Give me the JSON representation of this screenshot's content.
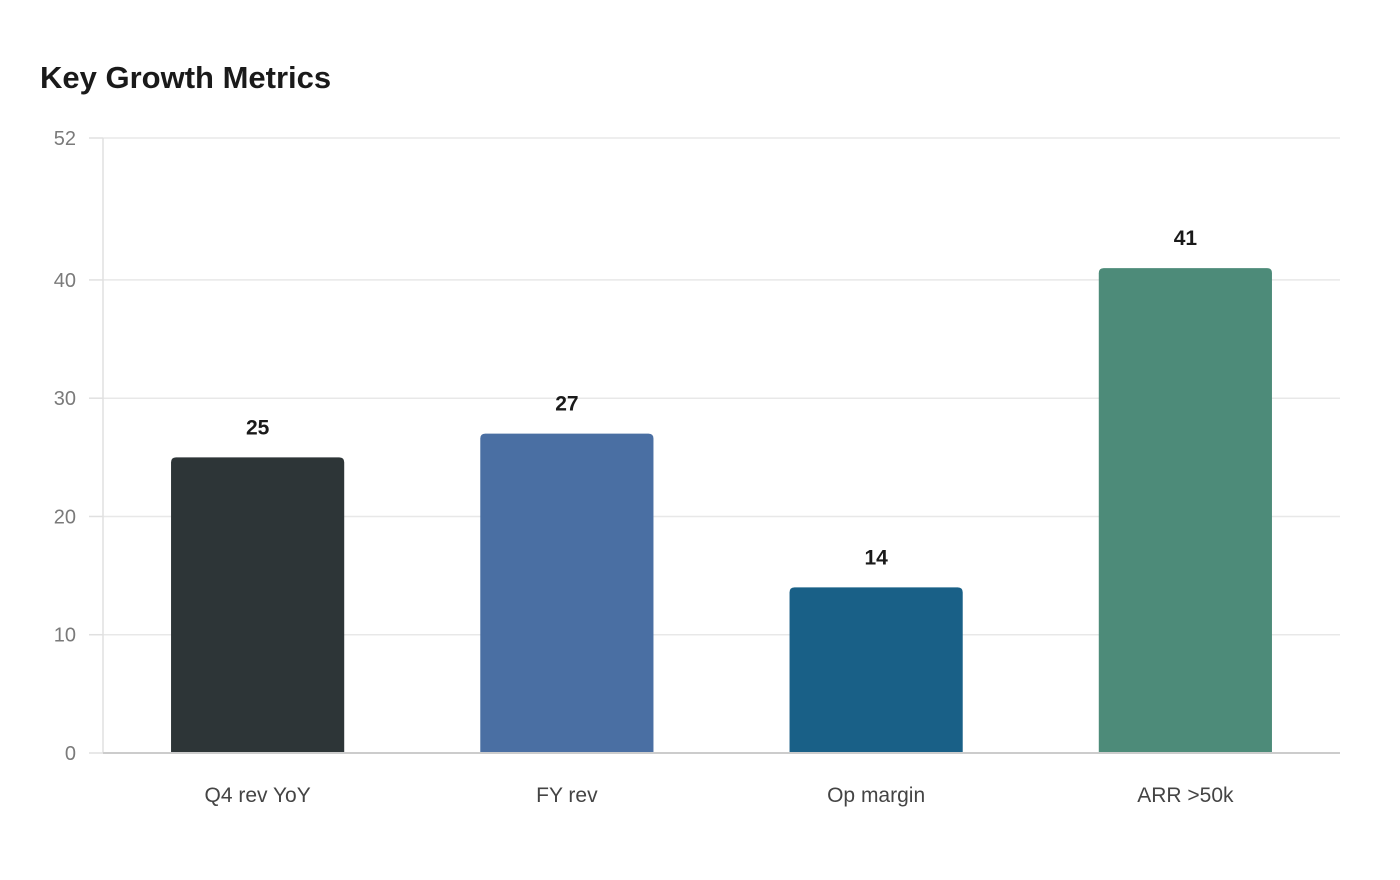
{
  "chart_data": {
    "type": "bar",
    "title": "Key Growth Metrics",
    "categories": [
      "Q4 rev YoY",
      "FY rev",
      "Op margin",
      "ARR >50k"
    ],
    "values": [
      25,
      27,
      14,
      41
    ],
    "colors": [
      "#2d3537",
      "#4a6fa3",
      "#196087",
      "#4d8b79"
    ],
    "ylim": [
      0,
      52
    ],
    "yticks": [
      0,
      10,
      20,
      30,
      40,
      52
    ],
    "xlabel": "",
    "ylabel": "",
    "grid": true,
    "legend": "none"
  }
}
